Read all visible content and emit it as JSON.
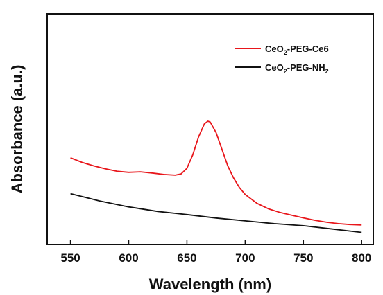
{
  "chart_data": {
    "type": "line",
    "xlabel": "Wavelength (nm)",
    "ylabel": "Absorbance (a.u.)",
    "xlim": [
      530,
      810
    ],
    "ylim": [
      0,
      1
    ],
    "x_ticks": [
      "550",
      "600",
      "650",
      "700",
      "750",
      "800"
    ],
    "y_ticks_shown": false,
    "legend_position": "top-right",
    "series": [
      {
        "name_parts": [
          "CeO",
          "2",
          "-PEG-Ce6"
        ],
        "color": "#e8161b",
        "x": [
          550,
          560,
          570,
          580,
          590,
          600,
          610,
          620,
          630,
          640,
          645,
          650,
          655,
          660,
          665,
          668,
          670,
          675,
          680,
          685,
          690,
          695,
          700,
          710,
          720,
          730,
          740,
          750,
          760,
          770,
          780,
          790,
          800
        ],
        "y": [
          0.425,
          0.399,
          0.379,
          0.362,
          0.348,
          0.342,
          0.345,
          0.338,
          0.33,
          0.326,
          0.333,
          0.365,
          0.442,
          0.545,
          0.62,
          0.635,
          0.63,
          0.57,
          0.475,
          0.38,
          0.31,
          0.255,
          0.215,
          0.165,
          0.133,
          0.112,
          0.096,
          0.081,
          0.067,
          0.056,
          0.048,
          0.043,
          0.04
        ]
      },
      {
        "name_parts": [
          "CeO",
          "2",
          "-PEG-NH",
          "2"
        ],
        "color": "#111111",
        "x": [
          550,
          575,
          600,
          625,
          650,
          675,
          700,
          725,
          750,
          775,
          800
        ],
        "y": [
          0.22,
          0.178,
          0.144,
          0.118,
          0.1,
          0.08,
          0.064,
          0.048,
          0.036,
          0.017,
          -0.002
        ]
      }
    ]
  }
}
